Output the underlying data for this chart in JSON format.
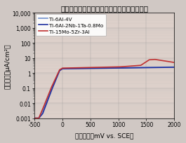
{
  "title": "インプラント材料の分極特性（社内データ）",
  "xlabel": "電極電位（mV vs. SCE）",
  "ylabel": "電流密度（μA/cm²）",
  "xlim": [
    -500,
    2000
  ],
  "ylim_log": [
    0.001,
    10000
  ],
  "xticks": [
    -500,
    0,
    500,
    1000,
    1500,
    2000
  ],
  "yticks": [
    0.001,
    0.01,
    0.1,
    1,
    10,
    100,
    1000,
    10000
  ],
  "ytick_labels": [
    "0.001",
    "0.01",
    "0.1",
    "1",
    "10",
    "100",
    "1,000",
    "10,000"
  ],
  "fig_facecolor": "#d0c8c4",
  "plot_bg": "#ddd0ca",
  "lines": [
    {
      "label": "Ti-6Al-4V",
      "color": "#7090cc",
      "lw": 1.2
    },
    {
      "label": "Ti-6Al-2Nb-1Ta-0.8Mo",
      "color": "#2030a0",
      "lw": 1.2
    },
    {
      "label": "Ti-15Mo-5Zr-3Al",
      "color": "#c03030",
      "lw": 1.2
    }
  ],
  "title_fontsize": 7.5,
  "axis_fontsize": 6.5,
  "tick_fontsize": 5.5,
  "legend_fontsize": 5.2
}
